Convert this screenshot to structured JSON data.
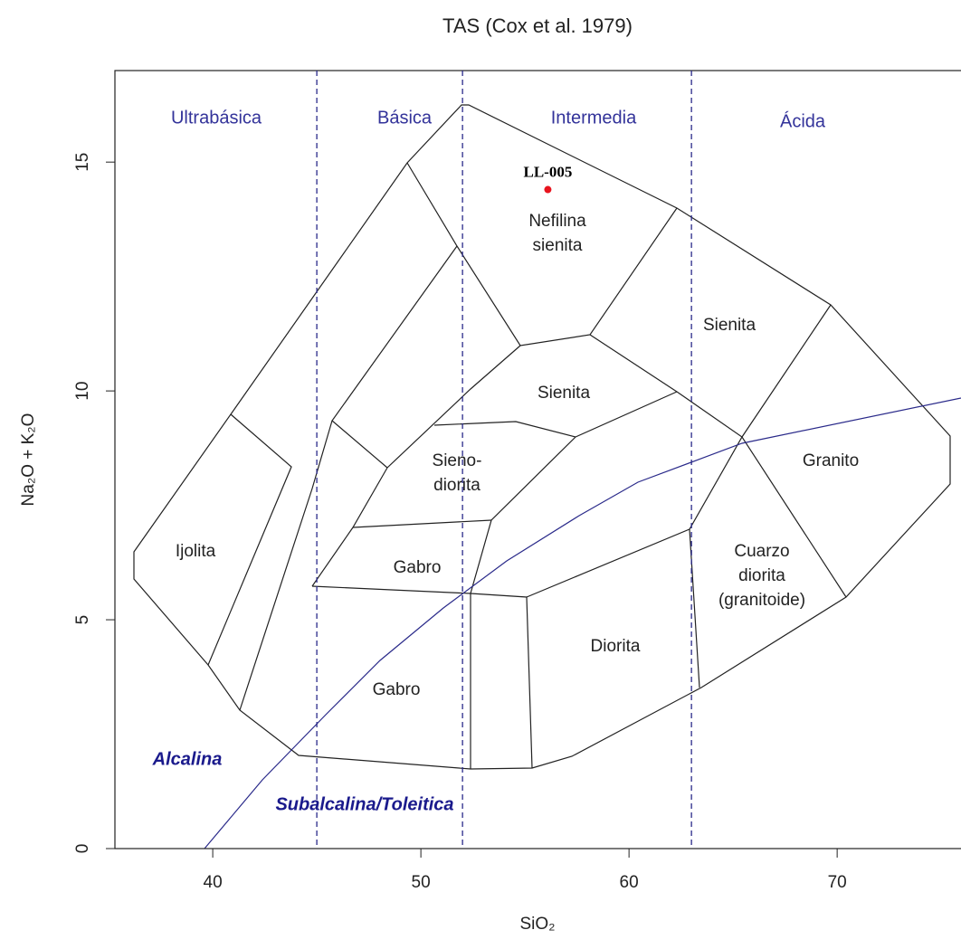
{
  "chart_data": {
    "type": "scatter",
    "title": "TAS (Cox et al. 1979)",
    "x_label": "SiO₂",
    "y_label": "Na₂O + K₂O",
    "xlim": [
      35.3,
      75.95
    ],
    "ylim": [
      0,
      17
    ],
    "xticks": [
      40,
      50,
      60,
      70
    ],
    "yticks": [
      0,
      5,
      10,
      15
    ],
    "vlines": [
      45,
      52,
      63
    ],
    "vline_color": "#2a2a8a",
    "regions": [
      "Ultrabásica",
      "Básica",
      "Intermedia",
      "Ácida"
    ],
    "fields": [
      [
        "Nefilina",
        "sienita"
      ],
      [
        "Sienita"
      ],
      [
        "Sienita"
      ],
      [
        "Sieno-",
        "diorita"
      ],
      [
        "Ijolita"
      ],
      [
        "Gabro"
      ],
      [
        "Gabro"
      ],
      [
        "Diorita"
      ],
      [
        "Cuarzo",
        "diorita",
        "(granitoide)"
      ],
      [
        "Granito"
      ]
    ],
    "series_labels": [
      "Alcalina",
      "Subalcalina/Toleitica"
    ],
    "points": [
      {
        "label": "LL-005",
        "x": 56.1,
        "y": 14.4,
        "color": "#e8141e"
      }
    ]
  }
}
